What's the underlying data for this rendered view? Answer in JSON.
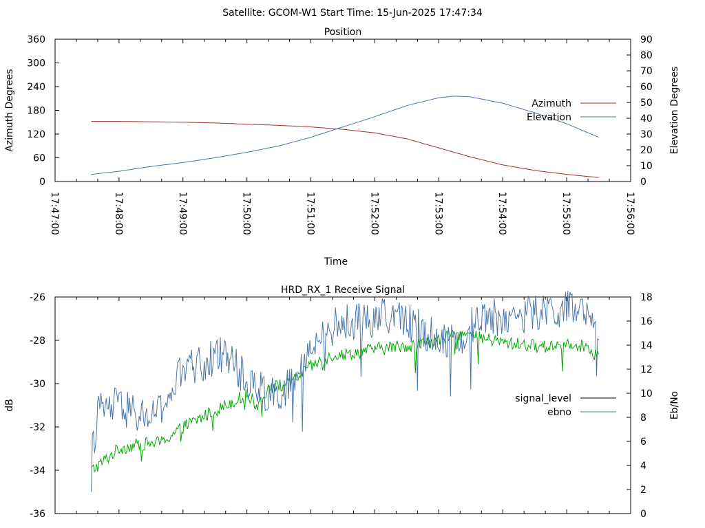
{
  "header": {
    "title": "Satellite: GCOM-W1    Start Time: 15-Jun-2025 17:47:34"
  },
  "chart_data": [
    {
      "type": "line",
      "title": "Position",
      "xlabel": "Time",
      "ylabel": "Azimuth Degrees",
      "y2label": "Elevation Degrees",
      "ylim": [
        0,
        360
      ],
      "y2lim": [
        0,
        90
      ],
      "yticks": [
        "0",
        "60",
        "120",
        "180",
        "240",
        "300",
        "360"
      ],
      "y2ticks": [
        "0",
        "10",
        "20",
        "30",
        "40",
        "50",
        "60",
        "70",
        "80",
        "90"
      ],
      "xlim": [
        "17:47:00",
        "17:56:00"
      ],
      "xticks": [
        "17:47:00",
        "17:48:00",
        "17:49:00",
        "17:50:00",
        "17:51:00",
        "17:52:00",
        "17:53:00",
        "17:54:00",
        "17:55:00",
        "17:56:00"
      ],
      "legend_position": "right",
      "series": [
        {
          "name": "Azimuth",
          "axis": "y",
          "color": "#a52a2a",
          "x": [
            "17:47:34",
            "17:48:00",
            "17:48:30",
            "17:49:00",
            "17:49:30",
            "17:50:00",
            "17:50:30",
            "17:51:00",
            "17:51:30",
            "17:52:00",
            "17:52:30",
            "17:53:00",
            "17:53:30",
            "17:54:00",
            "17:54:30",
            "17:55:00",
            "17:55:30"
          ],
          "values": [
            152,
            152,
            151,
            150,
            148,
            145,
            142,
            138,
            132,
            123,
            108,
            85,
            62,
            42,
            28,
            18,
            10
          ]
        },
        {
          "name": "Elevation",
          "axis": "y2",
          "color": "#4a76a8",
          "x": [
            "17:47:34",
            "17:48:00",
            "17:48:30",
            "17:49:00",
            "17:49:30",
            "17:50:00",
            "17:50:30",
            "17:51:00",
            "17:51:30",
            "17:52:00",
            "17:52:30",
            "17:53:00",
            "17:53:15",
            "17:53:30",
            "17:54:00",
            "17:54:30",
            "17:55:00",
            "17:55:30"
          ],
          "values": [
            4.5,
            6.5,
            9.5,
            12,
            15,
            18.5,
            22.5,
            28,
            34.5,
            41,
            48,
            53,
            54,
            53.5,
            49.5,
            43.5,
            36.5,
            28
          ]
        }
      ]
    },
    {
      "type": "line",
      "title": "HRD_RX_1 Receive Signal",
      "ylabel": "dB",
      "y2label": "Eb/No",
      "ylim": [
        -36,
        -26
      ],
      "y2lim": [
        0,
        18
      ],
      "yticks": [
        "-36",
        "-34",
        "-32",
        "-30",
        "-28",
        "-26"
      ],
      "y2ticks": [
        "0",
        "2",
        "4",
        "6",
        "8",
        "10",
        "12",
        "14",
        "16",
        "18"
      ],
      "xlim": [
        "17:47:00",
        "17:56:00"
      ],
      "legend_position": "right",
      "series": [
        {
          "name": "signal_level",
          "axis": "y",
          "color": "#00aa00",
          "x": [
            "17:47:34",
            "17:47:40",
            "17:48:00",
            "17:48:20",
            "17:48:40",
            "17:49:00",
            "17:49:20",
            "17:49:40",
            "17:50:00",
            "17:50:10",
            "17:50:20",
            "17:50:40",
            "17:51:00",
            "17:51:20",
            "17:51:40",
            "17:52:00",
            "17:52:20",
            "17:52:40",
            "17:53:00",
            "17:53:20",
            "17:53:40",
            "17:54:00",
            "17:54:20",
            "17:54:40",
            "17:55:00",
            "17:55:20",
            "17:55:30"
          ],
          "values": [
            -34.0,
            -33.8,
            -33.0,
            -32.8,
            -32.7,
            -32.0,
            -31.5,
            -31.0,
            -30.5,
            -31.0,
            -30.2,
            -30.0,
            -29.2,
            -28.7,
            -28.6,
            -28.4,
            -28.3,
            -28.2,
            -28.0,
            -27.7,
            -27.9,
            -28.1,
            -28.2,
            -28.3,
            -28.1,
            -28.3,
            -28.8
          ]
        },
        {
          "name": "ebno",
          "axis": "y2",
          "color": "#4a76a8",
          "x": [
            "17:47:34",
            "17:47:40",
            "17:48:00",
            "17:48:20",
            "17:48:40",
            "17:49:00",
            "17:49:20",
            "17:49:40",
            "17:50:00",
            "17:50:20",
            "17:50:40",
            "17:51:00",
            "17:51:20",
            "17:51:40",
            "17:52:00",
            "17:52:20",
            "17:52:40",
            "17:53:00",
            "17:53:20",
            "17:53:40",
            "17:54:00",
            "17:54:20",
            "17:54:40",
            "17:55:00",
            "17:55:20",
            "17:55:30"
          ],
          "values": [
            4.5,
            8.5,
            9.0,
            8.0,
            8.5,
            12.0,
            12.5,
            13.5,
            11.0,
            10.0,
            10.5,
            13.5,
            15.5,
            16.0,
            16.2,
            16.5,
            15.5,
            14.5,
            14.5,
            16.5,
            16.2,
            16.5,
            16.8,
            17.0,
            16.5,
            13.5
          ]
        }
      ]
    }
  ]
}
